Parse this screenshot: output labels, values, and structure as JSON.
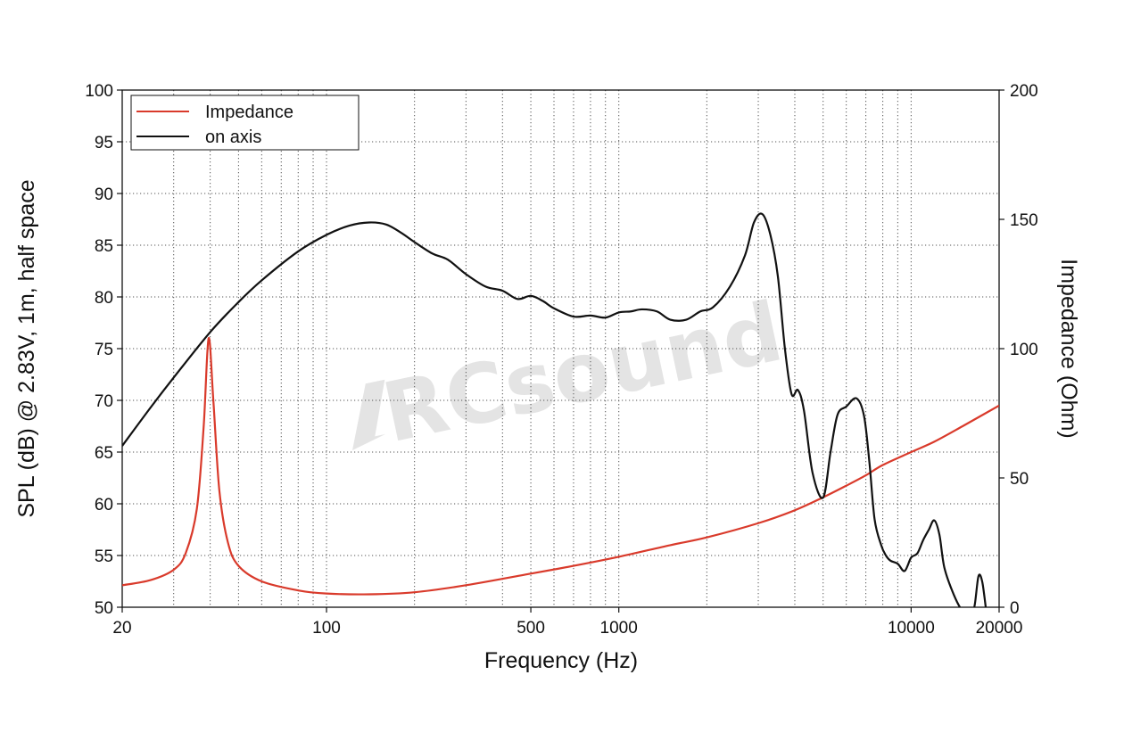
{
  "chart_data": {
    "type": "line",
    "xlabel": "Frequency (Hz)",
    "ylabel": "SPL (dB) @ 2.83V, 1m, half space",
    "y2label": "Impedance (Ohm)",
    "x_scale": "log",
    "xlim": [
      20,
      20000
    ],
    "ylim": [
      50,
      100
    ],
    "y2lim": [
      0,
      200
    ],
    "grid": true,
    "legend_placement": "top-left",
    "watermark": "RCsound",
    "x_tick_labels": [
      "20",
      "100",
      "500",
      "1000",
      "10000",
      "20000"
    ],
    "x_tick_values": [
      20,
      100,
      500,
      1000,
      10000,
      20000
    ],
    "y_ticks": [
      50,
      55,
      60,
      65,
      70,
      75,
      80,
      85,
      90,
      95,
      100
    ],
    "y2_ticks": [
      0,
      50,
      100,
      150,
      200
    ],
    "series": [
      {
        "name": "Impedance",
        "axis": "right",
        "color": "#d93a2b",
        "x": [
          20,
          25,
          30,
          33,
          36,
          38,
          39.5,
          41,
          43,
          46,
          50,
          60,
          80,
          100,
          140,
          200,
          300,
          500,
          700,
          1000,
          1500,
          2000,
          3000,
          4000,
          5000,
          6000,
          7000,
          8000,
          10000,
          12000,
          15000,
          20000
        ],
        "values": [
          8.5,
          10.5,
          14.5,
          21,
          38,
          70,
          104,
          80,
          45,
          25,
          16,
          10,
          6.5,
          5.3,
          5,
          5.8,
          8.5,
          13,
          16,
          19.5,
          24,
          27,
          32.5,
          37.5,
          42.5,
          47,
          51,
          55,
          60,
          64,
          70,
          78
        ]
      },
      {
        "name": "on axis",
        "axis": "left",
        "color": "#111111",
        "x": [
          20,
          25,
          30,
          40,
          50,
          60,
          80,
          100,
          120,
          140,
          160,
          180,
          200,
          230,
          260,
          300,
          350,
          400,
          450,
          500,
          550,
          600,
          700,
          800,
          900,
          1000,
          1100,
          1200,
          1350,
          1500,
          1700,
          1900,
          2100,
          2400,
          2700,
          2900,
          3100,
          3300,
          3500,
          3700,
          3900,
          4100,
          4300,
          4600,
          5000,
          5300,
          5600,
          6000,
          6500,
          6900,
          7200,
          7500,
          7900,
          8200,
          8500,
          9000,
          9500,
          10000,
          10500,
          11000,
          11500,
          12000,
          12500,
          13000,
          14000,
          15000,
          16000,
          16500,
          17000,
          17500,
          18000
        ],
        "values": [
          65.6,
          69.3,
          72.2,
          76.6,
          79.5,
          81.6,
          84.4,
          86,
          86.9,
          87.2,
          87,
          86.2,
          85.3,
          84.2,
          83.6,
          82.2,
          81,
          80.6,
          79.8,
          80.1,
          79.6,
          78.9,
          78.1,
          78.2,
          78,
          78.5,
          78.6,
          78.8,
          78.6,
          77.8,
          77.8,
          78.6,
          79,
          81,
          84,
          87.2,
          88,
          86,
          82,
          75,
          70.6,
          71,
          69,
          63,
          60.6,
          65,
          68.6,
          69.4,
          70.2,
          68.5,
          64,
          58.5,
          56,
          55,
          54.5,
          54.2,
          53.5,
          54.8,
          55.2,
          56.5,
          57.5,
          58.4,
          57,
          53.8,
          51.2,
          49.6,
          49,
          50.2,
          53,
          52.5,
          50
        ]
      }
    ]
  }
}
